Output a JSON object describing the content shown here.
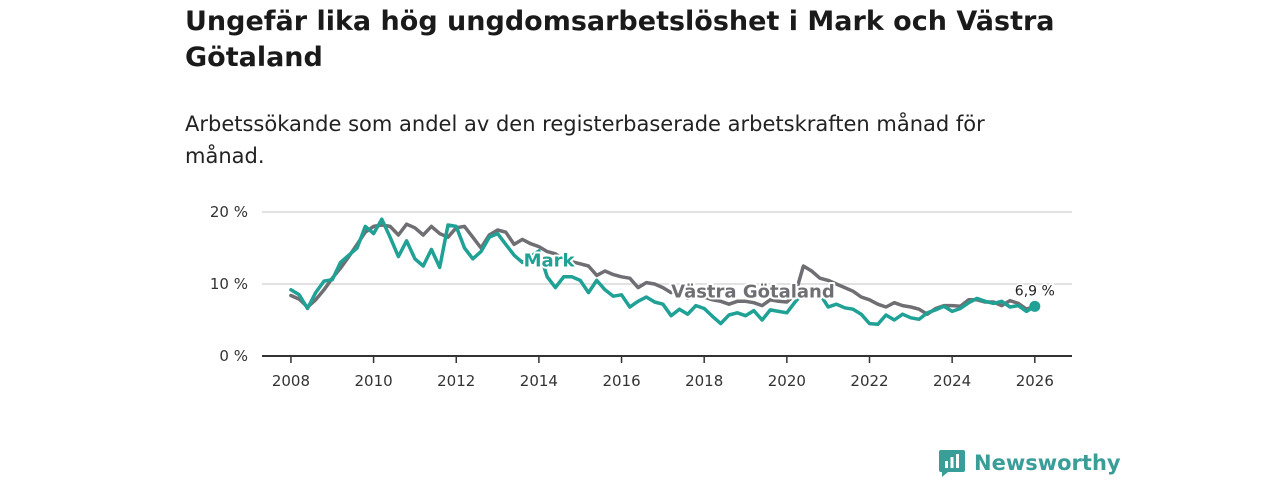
{
  "title": "Ungefär lika hög ungdomsarbetslöshet i Mark och Västra Götaland",
  "subtitle": "Arbetssökande som andel av den registerbaserade arbetskraften månad för månad.",
  "brand": {
    "name": "Newsworthy",
    "color": "#3a9e98"
  },
  "chart_data": {
    "type": "line",
    "title": "Ungefär lika hög ungdomsarbetslöshet i Mark och Västra Götaland",
    "subtitle": "Arbetssökande som andel av den registerbaserade arbetskraften månad för månad.",
    "xlabel": "",
    "ylabel": "",
    "xlim": [
      2007.3,
      2026.9
    ],
    "ylim": [
      0,
      20
    ],
    "x_ticks": [
      2008,
      2010,
      2012,
      2014,
      2016,
      2018,
      2020,
      2022,
      2024,
      2026
    ],
    "x_tick_labels": [
      "2008",
      "2010",
      "2012",
      "2014",
      "2016",
      "2018",
      "2020",
      "2022",
      "2024",
      "2026"
    ],
    "y_ticks": [
      0,
      10,
      20
    ],
    "y_tick_labels": [
      "0 %",
      "10 %",
      "20 %"
    ],
    "grid": true,
    "end_label": "6,9 %",
    "series": [
      {
        "name": "Västra Götaland",
        "color": "#6f6e73",
        "label": "Västra Götaland",
        "points": [
          [
            2008.0,
            8.4
          ],
          [
            2008.2,
            7.9
          ],
          [
            2008.4,
            6.8
          ],
          [
            2008.6,
            7.8
          ],
          [
            2008.8,
            9.2
          ],
          [
            2009.0,
            10.8
          ],
          [
            2009.2,
            12.2
          ],
          [
            2009.4,
            13.8
          ],
          [
            2009.6,
            15.5
          ],
          [
            2009.8,
            17.2
          ],
          [
            2010.0,
            18.0
          ],
          [
            2010.2,
            18.2
          ],
          [
            2010.4,
            18.0
          ],
          [
            2010.6,
            16.8
          ],
          [
            2010.8,
            18.3
          ],
          [
            2011.0,
            17.8
          ],
          [
            2011.2,
            16.8
          ],
          [
            2011.4,
            18.0
          ],
          [
            2011.6,
            17.0
          ],
          [
            2011.8,
            16.5
          ],
          [
            2012.0,
            17.8
          ],
          [
            2012.2,
            18.0
          ],
          [
            2012.4,
            16.5
          ],
          [
            2012.6,
            15.0
          ],
          [
            2012.8,
            16.8
          ],
          [
            2013.0,
            17.5
          ],
          [
            2013.2,
            17.2
          ],
          [
            2013.4,
            15.5
          ],
          [
            2013.6,
            16.2
          ],
          [
            2013.8,
            15.6
          ],
          [
            2014.0,
            15.2
          ],
          [
            2014.2,
            14.5
          ],
          [
            2014.4,
            14.2
          ],
          [
            2014.6,
            13.4
          ],
          [
            2014.8,
            13.1
          ],
          [
            2015.0,
            12.8
          ],
          [
            2015.2,
            12.5
          ],
          [
            2015.4,
            11.2
          ],
          [
            2015.6,
            11.8
          ],
          [
            2015.8,
            11.3
          ],
          [
            2016.0,
            11.0
          ],
          [
            2016.2,
            10.8
          ],
          [
            2016.4,
            9.5
          ],
          [
            2016.6,
            10.2
          ],
          [
            2016.8,
            10.0
          ],
          [
            2017.0,
            9.5
          ],
          [
            2017.2,
            8.8
          ],
          [
            2017.4,
            9.2
          ],
          [
            2017.6,
            8.0
          ],
          [
            2017.8,
            8.5
          ],
          [
            2018.0,
            8.2
          ],
          [
            2018.2,
            7.8
          ],
          [
            2018.4,
            7.6
          ],
          [
            2018.6,
            7.2
          ],
          [
            2018.8,
            7.6
          ],
          [
            2019.0,
            7.6
          ],
          [
            2019.2,
            7.4
          ],
          [
            2019.4,
            7.0
          ],
          [
            2019.6,
            7.8
          ],
          [
            2019.8,
            7.6
          ],
          [
            2020.0,
            7.5
          ],
          [
            2020.2,
            8.5
          ],
          [
            2020.4,
            12.5
          ],
          [
            2020.6,
            11.8
          ],
          [
            2020.8,
            10.8
          ],
          [
            2021.0,
            10.5
          ],
          [
            2021.2,
            10.0
          ],
          [
            2021.4,
            9.5
          ],
          [
            2021.6,
            9.0
          ],
          [
            2021.8,
            8.2
          ],
          [
            2022.0,
            7.8
          ],
          [
            2022.2,
            7.2
          ],
          [
            2022.4,
            6.8
          ],
          [
            2022.6,
            7.4
          ],
          [
            2022.8,
            7.0
          ],
          [
            2023.0,
            6.8
          ],
          [
            2023.2,
            6.5
          ],
          [
            2023.4,
            5.8
          ],
          [
            2023.6,
            6.6
          ],
          [
            2023.8,
            7.0
          ],
          [
            2024.0,
            7.0
          ],
          [
            2024.2,
            6.9
          ],
          [
            2024.4,
            7.8
          ],
          [
            2024.6,
            7.8
          ],
          [
            2024.8,
            7.5
          ],
          [
            2025.0,
            7.5
          ],
          [
            2025.2,
            7.0
          ],
          [
            2025.4,
            7.7
          ],
          [
            2025.6,
            7.3
          ],
          [
            2025.8,
            6.5
          ],
          [
            2026.0,
            6.9
          ]
        ]
      },
      {
        "name": "Mark",
        "color": "#1fa196",
        "label": "Mark",
        "points": [
          [
            2008.0,
            9.2
          ],
          [
            2008.2,
            8.5
          ],
          [
            2008.4,
            6.6
          ],
          [
            2008.6,
            8.8
          ],
          [
            2008.8,
            10.4
          ],
          [
            2009.0,
            10.6
          ],
          [
            2009.2,
            13.0
          ],
          [
            2009.4,
            14.0
          ],
          [
            2009.6,
            15.0
          ],
          [
            2009.8,
            18.0
          ],
          [
            2010.0,
            17.0
          ],
          [
            2010.2,
            19.0
          ],
          [
            2010.4,
            16.5
          ],
          [
            2010.6,
            13.8
          ],
          [
            2010.8,
            16.0
          ],
          [
            2011.0,
            13.5
          ],
          [
            2011.2,
            12.5
          ],
          [
            2011.4,
            14.8
          ],
          [
            2011.6,
            12.3
          ],
          [
            2011.8,
            18.2
          ],
          [
            2012.0,
            18.0
          ],
          [
            2012.2,
            15.0
          ],
          [
            2012.4,
            13.5
          ],
          [
            2012.6,
            14.5
          ],
          [
            2012.8,
            16.5
          ],
          [
            2013.0,
            17.0
          ],
          [
            2013.2,
            15.5
          ],
          [
            2013.4,
            14.0
          ],
          [
            2013.6,
            13.0
          ],
          [
            2013.8,
            13.8
          ],
          [
            2014.0,
            14.6
          ],
          [
            2014.2,
            11.0
          ],
          [
            2014.4,
            9.5
          ],
          [
            2014.6,
            11.0
          ],
          [
            2014.8,
            11.0
          ],
          [
            2015.0,
            10.5
          ],
          [
            2015.2,
            8.8
          ],
          [
            2015.4,
            10.5
          ],
          [
            2015.6,
            9.2
          ],
          [
            2015.8,
            8.3
          ],
          [
            2016.0,
            8.5
          ],
          [
            2016.2,
            6.8
          ],
          [
            2016.4,
            7.6
          ],
          [
            2016.6,
            8.2
          ],
          [
            2016.8,
            7.5
          ],
          [
            2017.0,
            7.2
          ],
          [
            2017.2,
            5.6
          ],
          [
            2017.4,
            6.5
          ],
          [
            2017.6,
            5.8
          ],
          [
            2017.8,
            7.0
          ],
          [
            2018.0,
            6.6
          ],
          [
            2018.2,
            5.5
          ],
          [
            2018.4,
            4.5
          ],
          [
            2018.6,
            5.7
          ],
          [
            2018.8,
            6.0
          ],
          [
            2019.0,
            5.6
          ],
          [
            2019.2,
            6.3
          ],
          [
            2019.4,
            5.0
          ],
          [
            2019.6,
            6.4
          ],
          [
            2019.8,
            6.2
          ],
          [
            2020.0,
            6.0
          ],
          [
            2020.2,
            7.5
          ],
          [
            2020.4,
            8.8
          ],
          [
            2020.6,
            9.0
          ],
          [
            2020.8,
            8.6
          ],
          [
            2021.0,
            6.8
          ],
          [
            2021.2,
            7.2
          ],
          [
            2021.4,
            6.7
          ],
          [
            2021.6,
            6.5
          ],
          [
            2021.8,
            5.8
          ],
          [
            2022.0,
            4.5
          ],
          [
            2022.2,
            4.4
          ],
          [
            2022.4,
            5.7
          ],
          [
            2022.6,
            5.0
          ],
          [
            2022.8,
            5.8
          ],
          [
            2023.0,
            5.3
          ],
          [
            2023.2,
            5.1
          ],
          [
            2023.4,
            6.0
          ],
          [
            2023.6,
            6.4
          ],
          [
            2023.8,
            6.9
          ],
          [
            2024.0,
            6.2
          ],
          [
            2024.2,
            6.6
          ],
          [
            2024.4,
            7.4
          ],
          [
            2024.6,
            8.0
          ],
          [
            2024.8,
            7.6
          ],
          [
            2025.0,
            7.3
          ],
          [
            2025.2,
            7.6
          ],
          [
            2025.4,
            6.8
          ],
          [
            2025.6,
            7.0
          ],
          [
            2025.8,
            6.2
          ],
          [
            2026.0,
            6.9
          ]
        ]
      }
    ]
  }
}
